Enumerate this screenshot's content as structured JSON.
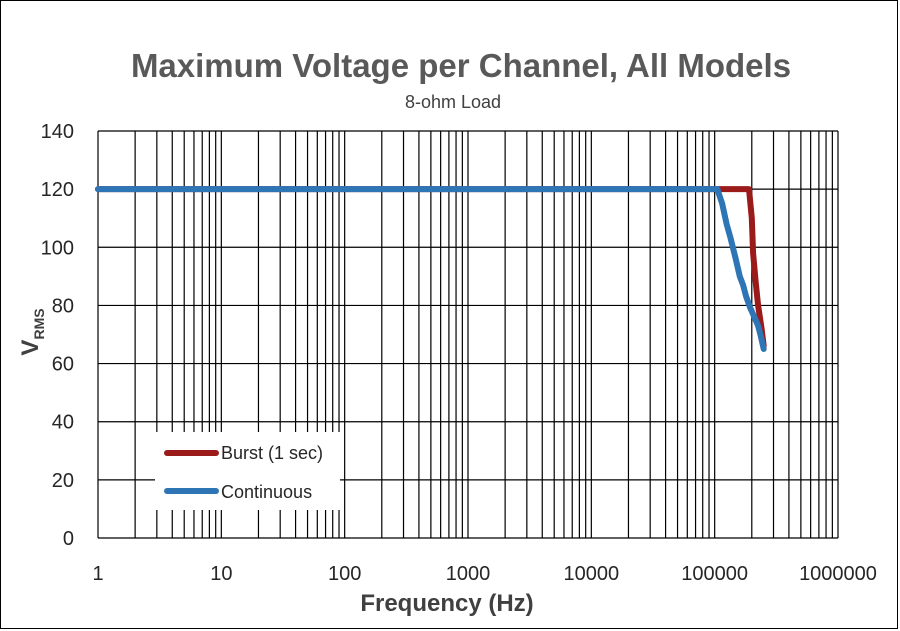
{
  "chart_data": {
    "type": "line",
    "title": "Maximum Voltage per Channel, All Models",
    "subtitle": "8-ohm Load",
    "xlabel": "Frequency (Hz)",
    "ylabel_main": "V",
    "ylabel_sub": "RMS",
    "x_scale": "log",
    "xlim": [
      1,
      1000000
    ],
    "ylim": [
      0,
      140
    ],
    "x_ticks": [
      "1",
      "10",
      "100",
      "1000",
      "10000",
      "100000",
      "1000000"
    ],
    "y_ticks": [
      "0",
      "20",
      "40",
      "60",
      "80",
      "100",
      "120",
      "140"
    ],
    "grid": true,
    "legend_position": "bottom-left",
    "series": [
      {
        "name": "Burst (1 sec)",
        "color": "#9b1b1b",
        "points": [
          [
            1,
            120
          ],
          [
            100000,
            120
          ],
          [
            190000,
            120
          ],
          [
            200000,
            110
          ],
          [
            205000,
            98
          ],
          [
            215000,
            88
          ],
          [
            225000,
            80
          ],
          [
            240000,
            72
          ],
          [
            250000,
            66
          ]
        ]
      },
      {
        "name": "Continuous",
        "color": "#2e75b6",
        "points": [
          [
            1,
            120
          ],
          [
            105000,
            120
          ],
          [
            115000,
            115
          ],
          [
            125000,
            108
          ],
          [
            135000,
            103
          ],
          [
            148000,
            96
          ],
          [
            160000,
            90
          ],
          [
            170000,
            87
          ],
          [
            180000,
            83
          ],
          [
            195000,
            79
          ],
          [
            210000,
            76
          ],
          [
            225000,
            73
          ],
          [
            235000,
            70
          ],
          [
            250000,
            65
          ]
        ]
      }
    ]
  }
}
